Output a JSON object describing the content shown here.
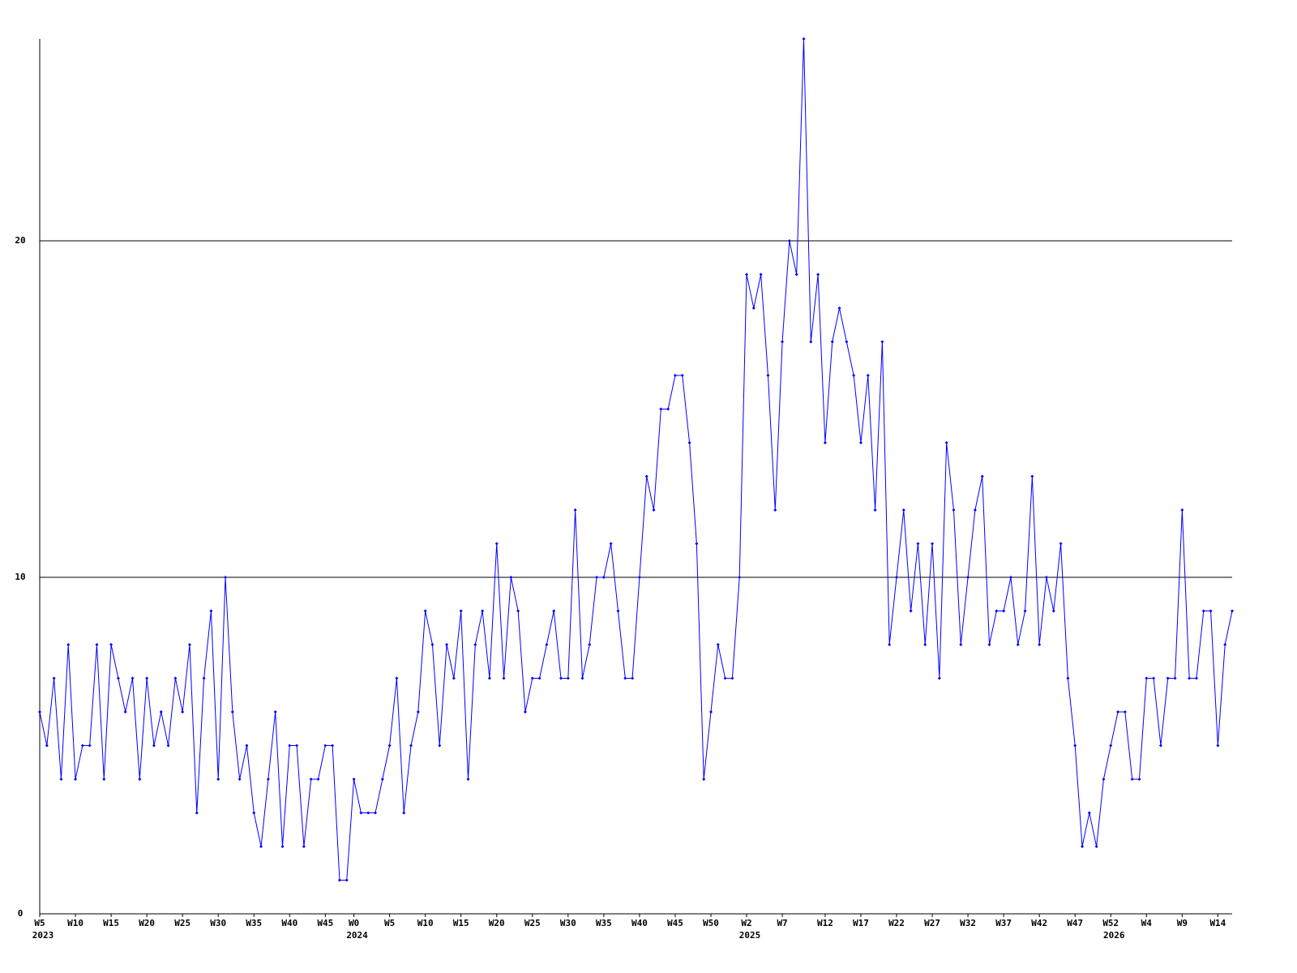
{
  "chart_data": {
    "type": "line",
    "series": [
      {
        "color": "#0000ff",
        "values": [
          6,
          5,
          7,
          4,
          8,
          4,
          5,
          5,
          8,
          4,
          8,
          7,
          6,
          7,
          4,
          7,
          5,
          6,
          5,
          7,
          6,
          8,
          3,
          7,
          9,
          4,
          10,
          6,
          4,
          5,
          3,
          2,
          4,
          6,
          2,
          5,
          5,
          2,
          4,
          4,
          5,
          5,
          1,
          1,
          4,
          3,
          3,
          3,
          4,
          5,
          7,
          3,
          5,
          6,
          9,
          8,
          5,
          8,
          7,
          9,
          4,
          8,
          9,
          7,
          11,
          7,
          10,
          9,
          6,
          7,
          7,
          8,
          9,
          7,
          7,
          12,
          7,
          8,
          10,
          10,
          11,
          9,
          7,
          7,
          10,
          13,
          12,
          15,
          15,
          16,
          16,
          14,
          11,
          4,
          6,
          8,
          7,
          7,
          10,
          19,
          18,
          19,
          16,
          12,
          17,
          20,
          19,
          26,
          17,
          19,
          14,
          17,
          18,
          17,
          16,
          14,
          16,
          12,
          17,
          8,
          10,
          12,
          9,
          11,
          8,
          11,
          7,
          14,
          12,
          8,
          10,
          12,
          13,
          8,
          9,
          9,
          10,
          8,
          9,
          13,
          8,
          10,
          9,
          11,
          7,
          5,
          2,
          3,
          2,
          4,
          5,
          6,
          6,
          4,
          4,
          7,
          7,
          5,
          7,
          7,
          12,
          7,
          7,
          9,
          9,
          5,
          8,
          9
        ]
      }
    ],
    "ylim": [
      0,
      26
    ],
    "yticks": [
      0,
      10,
      20
    ],
    "grid": true,
    "xticks": [
      {
        "value": 0,
        "label": "W5"
      },
      {
        "value": 5,
        "label": "W10"
      },
      {
        "value": 10,
        "label": "W15"
      },
      {
        "value": 15,
        "label": "W20"
      },
      {
        "value": 20,
        "label": "W25"
      },
      {
        "value": 25,
        "label": "W30"
      },
      {
        "value": 30,
        "label": "W35"
      },
      {
        "value": 35,
        "label": "W40"
      },
      {
        "value": 40,
        "label": "W45"
      },
      {
        "value": 44,
        "label": "W0"
      },
      {
        "value": 49,
        "label": "W5"
      },
      {
        "value": 54,
        "label": "W10"
      },
      {
        "value": 59,
        "label": "W15"
      },
      {
        "value": 64,
        "label": "W20"
      },
      {
        "value": 69,
        "label": "W25"
      },
      {
        "value": 74,
        "label": "W30"
      },
      {
        "value": 79,
        "label": "W35"
      },
      {
        "value": 84,
        "label": "W40"
      },
      {
        "value": 89,
        "label": "W45"
      },
      {
        "value": 94,
        "label": "W50"
      },
      {
        "value": 99,
        "label": "W2"
      },
      {
        "value": 104,
        "label": "W7"
      },
      {
        "value": 110,
        "label": "W12"
      },
      {
        "value": 115,
        "label": "W17"
      },
      {
        "value": 120,
        "label": "W22"
      },
      {
        "value": 125,
        "label": "W27"
      },
      {
        "value": 130,
        "label": "W32"
      },
      {
        "value": 135,
        "label": "W37"
      },
      {
        "value": 140,
        "label": "W42"
      },
      {
        "value": 145,
        "label": "W47"
      },
      {
        "value": 150,
        "label": "W52"
      },
      {
        "value": 155,
        "label": "W4"
      },
      {
        "value": 160,
        "label": "W9"
      },
      {
        "value": 165,
        "label": "W14"
      }
    ],
    "year_ticks": [
      {
        "value": 0,
        "label": "2023"
      },
      {
        "value": 44,
        "label": "2024"
      },
      {
        "value": 99,
        "label": "2025"
      },
      {
        "value": 150,
        "label": "2026"
      }
    ]
  }
}
